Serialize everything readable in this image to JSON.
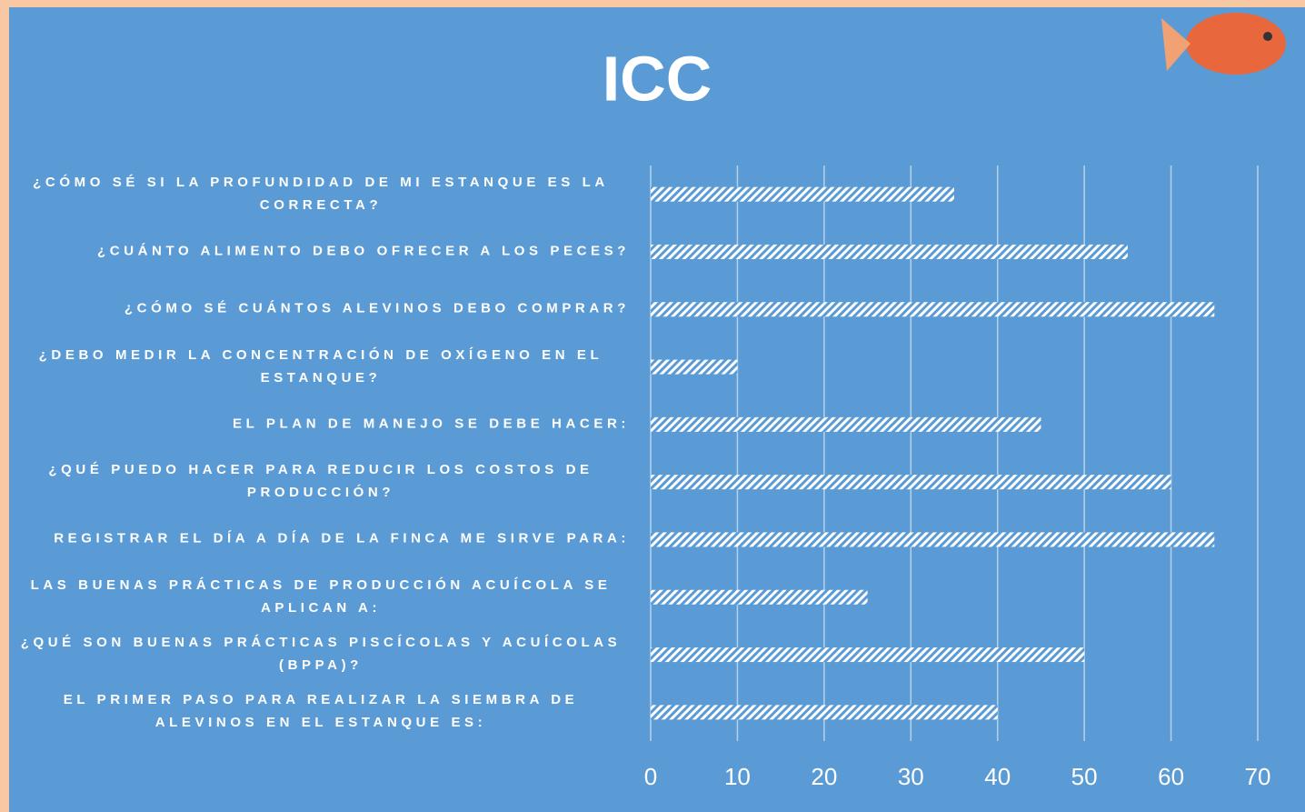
{
  "chart_data": {
    "type": "hbar",
    "title": "ICC",
    "categories": [
      "¿CÓMO SÉ SI LA PROFUNDIDAD DE MI ESTANQUE ES LA CORRECTA?",
      "¿CUÁNTO ALIMENTO DEBO OFRECER A LOS PECES?",
      "¿CÓMO SÉ CUÁNTOS ALEVINOS DEBO COMPRAR?",
      "¿DEBO MEDIR LA CONCENTRACIÓN DE OXÍGENO EN EL ESTANQUE?",
      "EL PLAN DE MANEJO SE DEBE HACER:",
      "¿QUÉ PUEDO HACER PARA REDUCIR LOS COSTOS DE PRODUCCIÓN?",
      "REGISTRAR EL DÍA A DÍA DE LA FINCA ME SIRVE PARA:",
      "LAS BUENAS PRÁCTICAS DE PRODUCCIÓN ACUÍCOLA SE APLICAN A:",
      "¿QUÉ SON BUENAS PRÁCTICAS PISCÍCOLAS Y ACUÍCOLAS (BPPA)?",
      "EL PRIMER PASO PARA REALIZAR LA SIEMBRA DE ALEVINOS EN EL ESTANQUE ES:"
    ],
    "values": [
      35,
      55,
      65,
      10,
      45,
      60,
      65,
      25,
      50,
      40
    ],
    "color": "#ffffff",
    "xlim": [
      0,
      70
    ],
    "xticks": [
      0,
      10,
      20,
      30,
      40,
      50,
      60,
      70
    ],
    "grid": true
  }
}
